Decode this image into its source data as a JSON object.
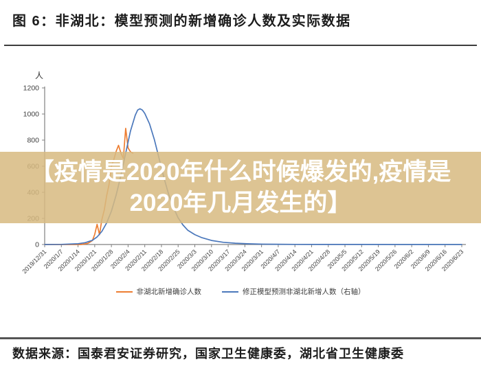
{
  "page": {
    "title": "图 6：非湖北：模型预测的新增确诊人数及实际数据",
    "source": "数据来源：国泰君安证券研究，国家卫生健康委，湖北省卫生健康委"
  },
  "overlay": {
    "line1": "【疫情是2020年什么时候爆发的,疫情是",
    "line2": "2020年几月发生的】",
    "bg_color": "rgba(215,186,128,0.85)",
    "text_color": "#ffffff"
  },
  "chart_data": {
    "type": "line",
    "title": "",
    "xlabel": "",
    "ylabel": "人",
    "ylim": [
      0,
      1200
    ],
    "xlim_days": [
      0,
      175
    ],
    "grid": false,
    "legend_position": "bottom",
    "y_ticks": [
      0,
      200,
      400,
      600,
      800,
      1000,
      1200
    ],
    "x_tick_labels": [
      "2019/12/31",
      "2020/1/7",
      "2020/1/14",
      "2020/1/21",
      "2020/1/28",
      "2020/2/4",
      "2020/2/11",
      "2020/2/18",
      "2020/2/25",
      "2020/3/3",
      "2020/3/10",
      "2020/3/17",
      "2020/3/24",
      "2020/3/31",
      "2020/4/7",
      "2020/4/14",
      "2020/4/21",
      "2020/4/28",
      "2020/5/5",
      "2020/5/12",
      "2020/5/19",
      "2020/5/26",
      "2020/6/2",
      "2020/6/9",
      "2020/6/16",
      "2020/6/23"
    ],
    "axis_color": "#808080",
    "tick_label_color": "#404040",
    "series": [
      {
        "name": "非湖北新增确诊人数",
        "color": "#ed7d31",
        "points_days_value": [
          [
            0,
            0
          ],
          [
            8,
            0
          ],
          [
            12,
            0
          ],
          [
            15,
            0
          ],
          [
            16,
            2
          ],
          [
            18,
            8
          ],
          [
            19,
            18
          ],
          [
            20,
            30
          ],
          [
            21,
            77
          ],
          [
            22,
            155
          ],
          [
            23,
            75
          ],
          [
            24,
            190
          ],
          [
            25,
            263
          ],
          [
            26,
            373
          ],
          [
            27,
            460
          ],
          [
            28,
            599
          ],
          [
            29,
            650
          ],
          [
            30,
            715
          ],
          [
            31,
            760
          ],
          [
            32,
            700
          ],
          [
            33,
            660
          ],
          [
            34,
            890
          ],
          [
            35,
            740
          ],
          [
            36,
            710
          ],
          [
            37,
            700
          ]
        ]
      },
      {
        "name": "修正模型预测非湖北新增人数（右轴）",
        "color": "#4a77bb",
        "points_days_value": [
          [
            0,
            0
          ],
          [
            7,
            1
          ],
          [
            14,
            6
          ],
          [
            17,
            14
          ],
          [
            20,
            32
          ],
          [
            22,
            58
          ],
          [
            24,
            100
          ],
          [
            26,
            165
          ],
          [
            28,
            255
          ],
          [
            30,
            380
          ],
          [
            32,
            530
          ],
          [
            34,
            700
          ],
          [
            36,
            870
          ],
          [
            38,
            990
          ],
          [
            39,
            1030
          ],
          [
            40,
            1040
          ],
          [
            41,
            1030
          ],
          [
            42,
            1005
          ],
          [
            44,
            925
          ],
          [
            46,
            805
          ],
          [
            48,
            660
          ],
          [
            50,
            515
          ],
          [
            52,
            385
          ],
          [
            54,
            285
          ],
          [
            56,
            205
          ],
          [
            58,
            150
          ],
          [
            60,
            110
          ],
          [
            63,
            76
          ],
          [
            66,
            52
          ],
          [
            70,
            31
          ],
          [
            75,
            17
          ],
          [
            80,
            10
          ],
          [
            85,
            6
          ],
          [
            90,
            3
          ],
          [
            97,
            2
          ],
          [
            105,
            1
          ],
          [
            115,
            0.6
          ],
          [
            130,
            0.3
          ],
          [
            150,
            0.1
          ],
          [
            175,
            0
          ]
        ]
      }
    ]
  }
}
